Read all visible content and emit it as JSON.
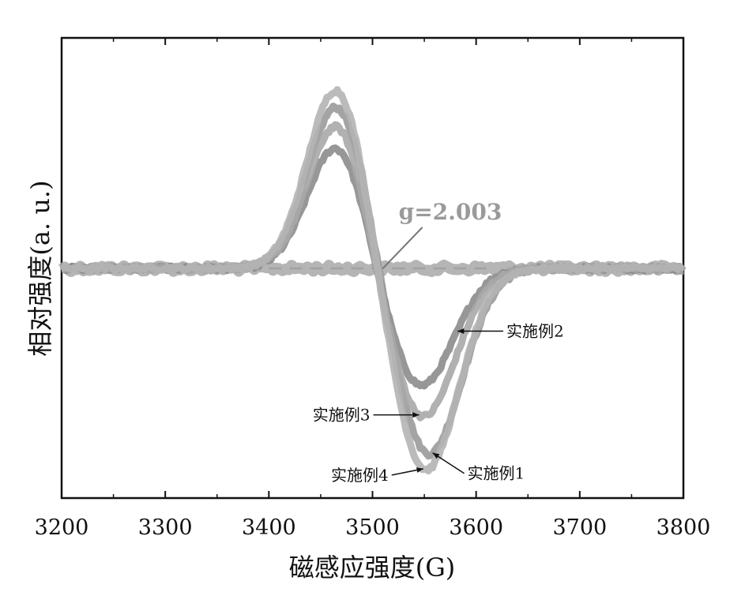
{
  "chart_data": {
    "type": "line",
    "xlabel": "磁感应强度(G)",
    "ylabel": "相对强度(a. u.)",
    "xlim": [
      3200,
      3800
    ],
    "ylim": [
      -1.25,
      1.25
    ],
    "xticks": [
      "3200",
      "3300",
      "3400",
      "3500",
      "3600",
      "3700",
      "3800"
    ],
    "grid": false,
    "zero_line": true,
    "g_annotation": {
      "text": "g=2.003",
      "x": 3510
    },
    "series": [
      {
        "name": "实施例1",
        "pos_peak": 0.9,
        "neg_peak": -1.02,
        "pos_center": 3466,
        "neg_center": 3554,
        "color": "#9a9a9a"
      },
      {
        "name": "实施例2",
        "pos_peak": 0.68,
        "neg_peak": -0.65,
        "pos_center": 3466,
        "neg_center": 3546,
        "color": "#8c8c8c"
      },
      {
        "name": "实施例3",
        "pos_peak": 0.8,
        "neg_peak": -0.82,
        "pos_center": 3466,
        "neg_center": 3548,
        "color": "#a8a8a8"
      },
      {
        "name": "实施例4",
        "pos_peak": 1.0,
        "neg_peak": -1.11,
        "pos_center": 3466,
        "neg_center": 3551,
        "color": "#b4b4b4"
      }
    ],
    "annotations": [
      {
        "text": "实施例2",
        "series": "实施例2",
        "x": 3582
      },
      {
        "text": "实施例3",
        "series": "实施例3",
        "x": 3545
      },
      {
        "text": "实施例1",
        "series": "实施例1",
        "x": 3558
      },
      {
        "text": "实施例4",
        "series": "实施例4",
        "x": 3549
      }
    ]
  }
}
